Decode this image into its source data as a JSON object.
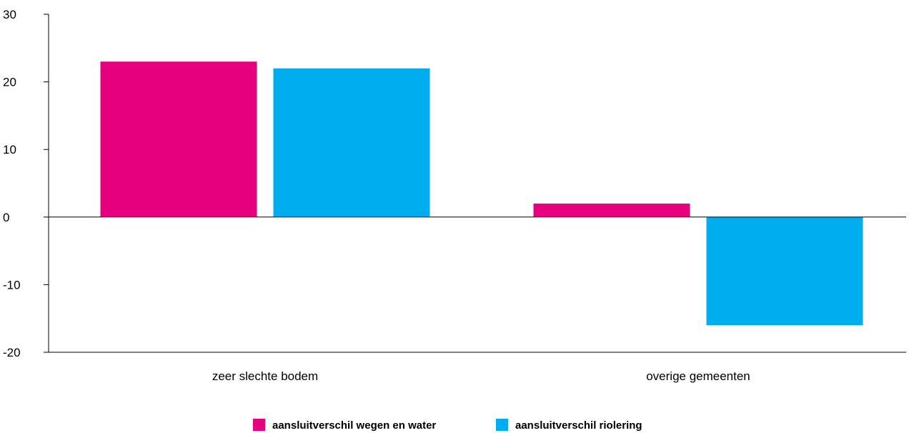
{
  "chart_data": {
    "type": "bar",
    "categories": [
      "zeer slechte bodem",
      "overige gemeenten"
    ],
    "series": [
      {
        "name": "aansluitverschil wegen en water",
        "color": "#e6007e",
        "values": [
          23,
          2
        ]
      },
      {
        "name": "aansluitverschil riolering",
        "color": "#00adef",
        "values": [
          22,
          -16
        ]
      }
    ],
    "ylim": [
      -20,
      30
    ],
    "yticks": [
      30,
      20,
      10,
      0,
      -10,
      -20
    ],
    "legend_position": "bottom",
    "grid": false
  }
}
